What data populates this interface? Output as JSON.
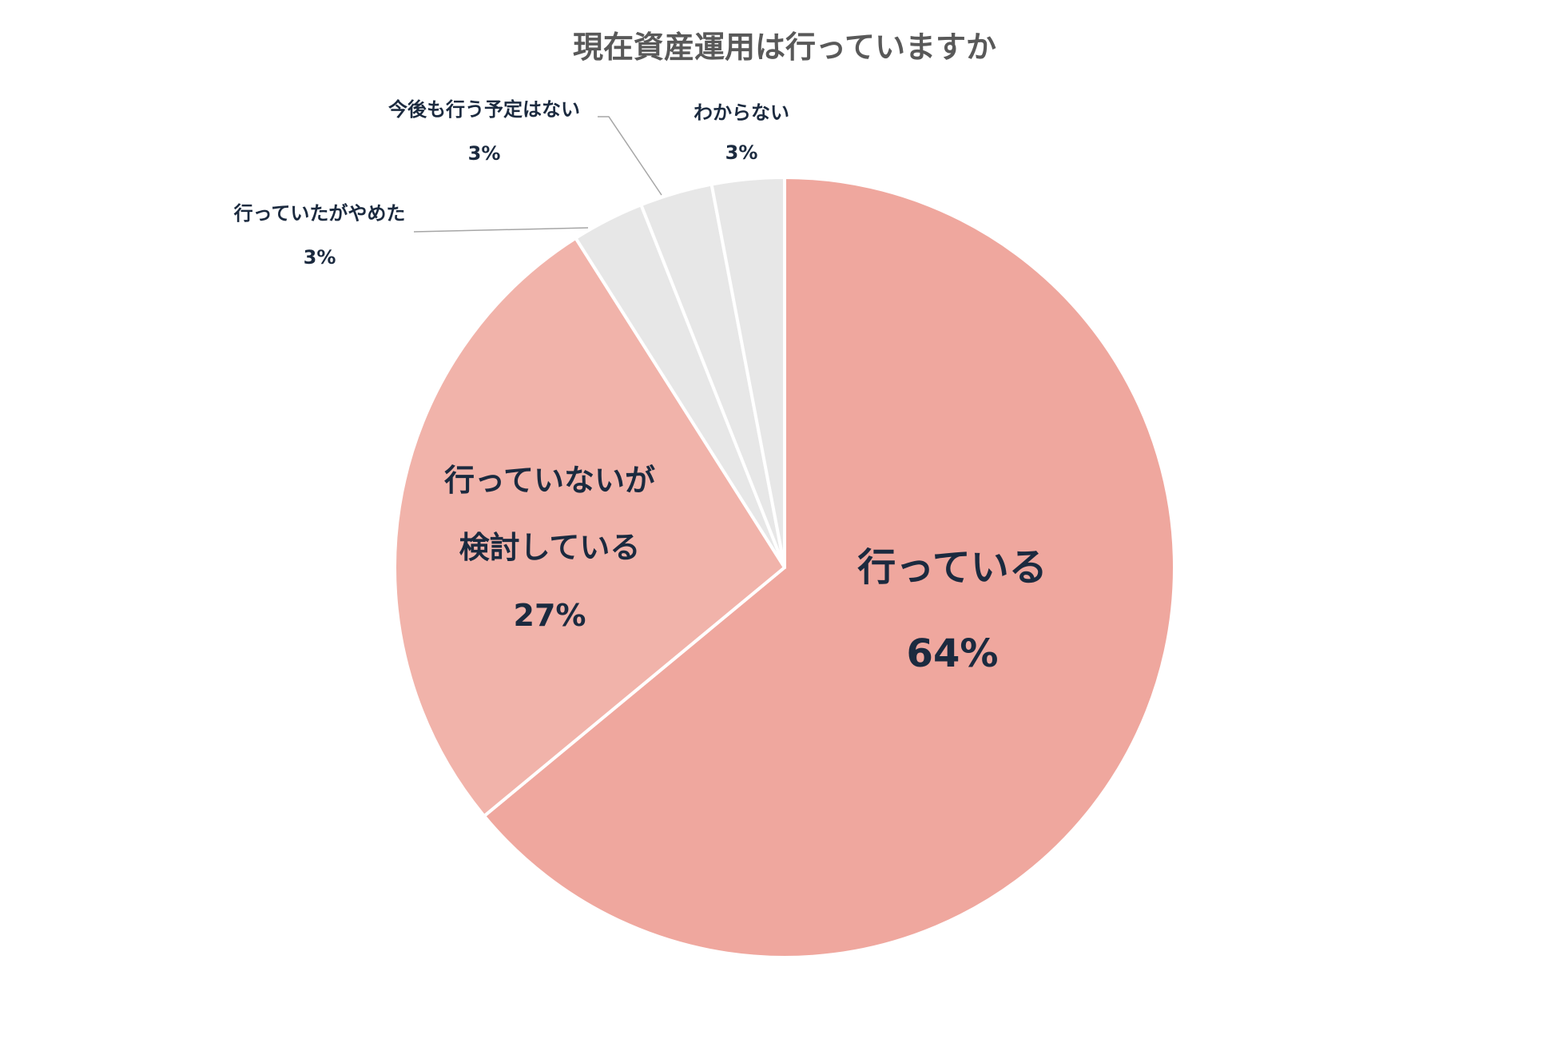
{
  "chart_data": {
    "type": "pie",
    "title": "現在資産運用は行っていますか",
    "start": "12 o'clock",
    "direction": "clockwise",
    "slices": [
      {
        "label": "行っている",
        "value": 64,
        "value_label": "64%",
        "color": "#efa79e"
      },
      {
        "label": "行っていないが検討している",
        "label_lines": [
          "行っていないが",
          "検討している"
        ],
        "value": 27,
        "value_label": "27%",
        "color": "#f1b3aa"
      },
      {
        "label": "行っていたがやめた",
        "value": 3,
        "value_label": "3%",
        "color": "#e7e7e7"
      },
      {
        "label": "今後も行う予定はない",
        "value": 3,
        "value_label": "3%",
        "color": "#e7e7e7"
      },
      {
        "label": "わからない",
        "value": 3,
        "value_label": "3%",
        "color": "#e7e7e7"
      }
    ],
    "slice_border_color": "#ffffff",
    "leader_color": "#a6a6a6",
    "legend": "none"
  }
}
